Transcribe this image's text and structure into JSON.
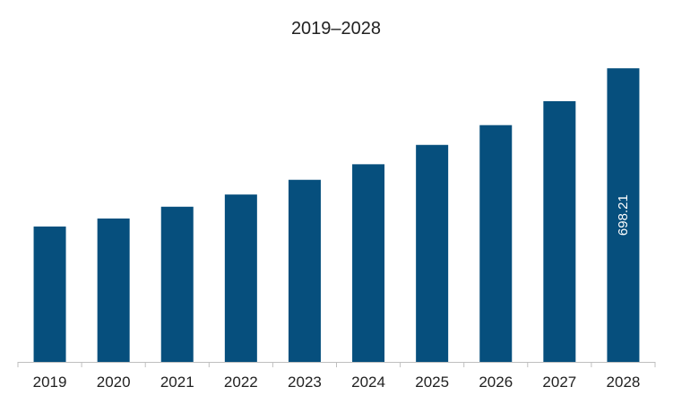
{
  "chart_data": {
    "type": "bar",
    "title": "2019–2028",
    "xlabel": "",
    "ylabel": "",
    "categories": [
      "2019",
      "2020",
      "2021",
      "2022",
      "2023",
      "2024",
      "2025",
      "2026",
      "2027",
      "2028"
    ],
    "values": [
      322,
      341,
      369,
      398,
      433,
      470,
      516,
      563,
      620,
      698.21
    ],
    "data_labels": [
      {
        "index": 9,
        "text": "698.21"
      }
    ],
    "ylim": [
      0,
      720
    ],
    "grid": false,
    "legend": "none",
    "bar_color": "#064f7d",
    "axis_color": "#bfbfbf"
  }
}
